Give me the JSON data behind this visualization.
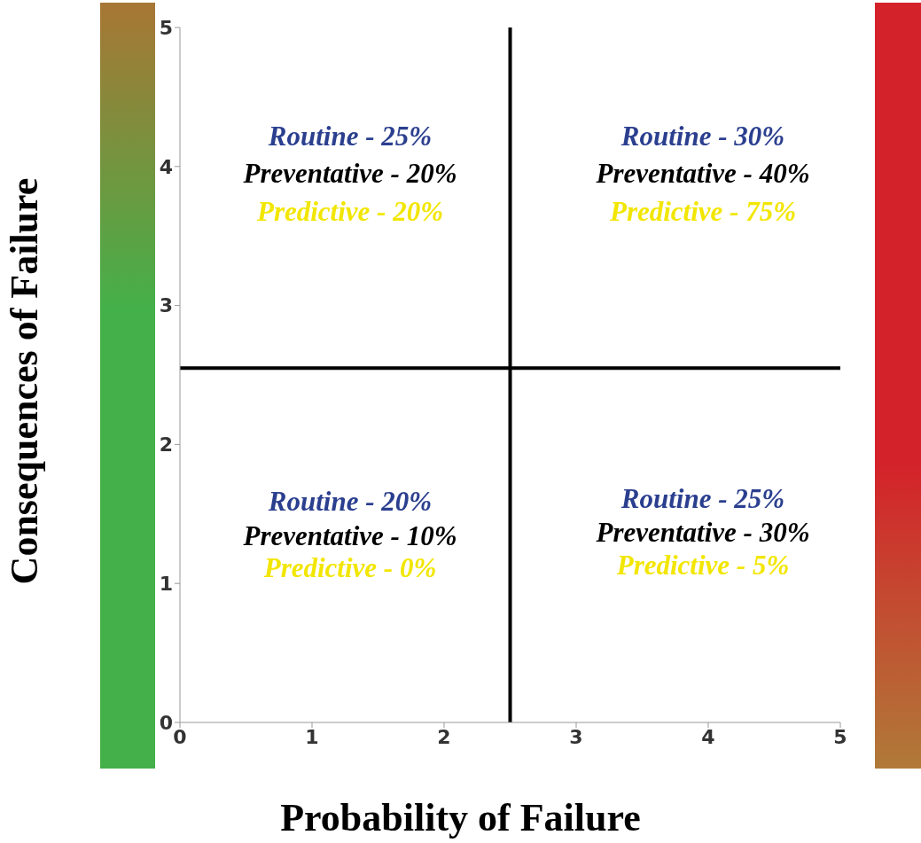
{
  "chart_data": {
    "type": "scatter",
    "xlabel": "Probability of Failure",
    "ylabel": "Consequences of Failure",
    "xlim": [
      0,
      5
    ],
    "ylim": [
      0,
      5
    ],
    "xticks": [
      0,
      1,
      2,
      3,
      4,
      5
    ],
    "yticks": [
      0,
      1,
      2,
      3,
      4,
      5
    ],
    "ref_lines": [
      {
        "axis": "x",
        "value": 2.5,
        "color": "#000000"
      },
      {
        "axis": "y",
        "value": 2.55,
        "color": "#000000"
      }
    ],
    "annotations": [
      "Routine - 25%",
      "Preventative - 20%",
      "Predictive - 20%",
      "Routine - 30%",
      "Preventative - 40%",
      "Predictive - 75%",
      "Routine - 20%",
      "Preventative - 10%",
      "Predictive - 0%",
      "Routine - 25%",
      "Preventative - 30%",
      "Predictive - 5%"
    ]
  }
}
